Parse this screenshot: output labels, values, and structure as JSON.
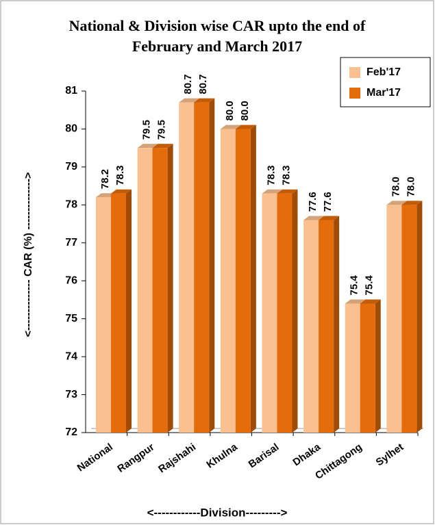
{
  "chart_data": {
    "type": "bar3d",
    "title": [
      "National & Division wise CAR upto the end of",
      "February and March 2017"
    ],
    "y_label": "<-------------- CAR (%) -------------->",
    "x_label": "<------------Division--------->",
    "categories": [
      "National",
      "Rangpur",
      "Rajshahi",
      "Khulna",
      "Barisal",
      "Dhaka",
      "Chittagong",
      "Sylhet"
    ],
    "series": [
      {
        "name": "Feb'17",
        "color": "#fac090",
        "values": [
          78.2,
          79.5,
          80.7,
          80.0,
          78.3,
          77.6,
          75.4,
          78.0
        ],
        "value_labels": [
          "78.2",
          "79.5",
          "80.7",
          "80.0",
          "78.3",
          "77.6",
          "75.4",
          "78.0"
        ]
      },
      {
        "name": "Mar'17",
        "color": "#e46c0a",
        "values": [
          78.3,
          79.5,
          80.7,
          80.0,
          78.3,
          77.6,
          75.4,
          78.0
        ],
        "value_labels": [
          "78.3",
          "79.5",
          "80.7",
          "80.0",
          "78.3",
          "77.6",
          "75.4",
          "78.0"
        ]
      }
    ],
    "ylim": [
      72,
      81
    ],
    "yticks": [
      72,
      73,
      74,
      75,
      76,
      77,
      78,
      79,
      80,
      81
    ],
    "grid": false,
    "legend": "top-right"
  }
}
